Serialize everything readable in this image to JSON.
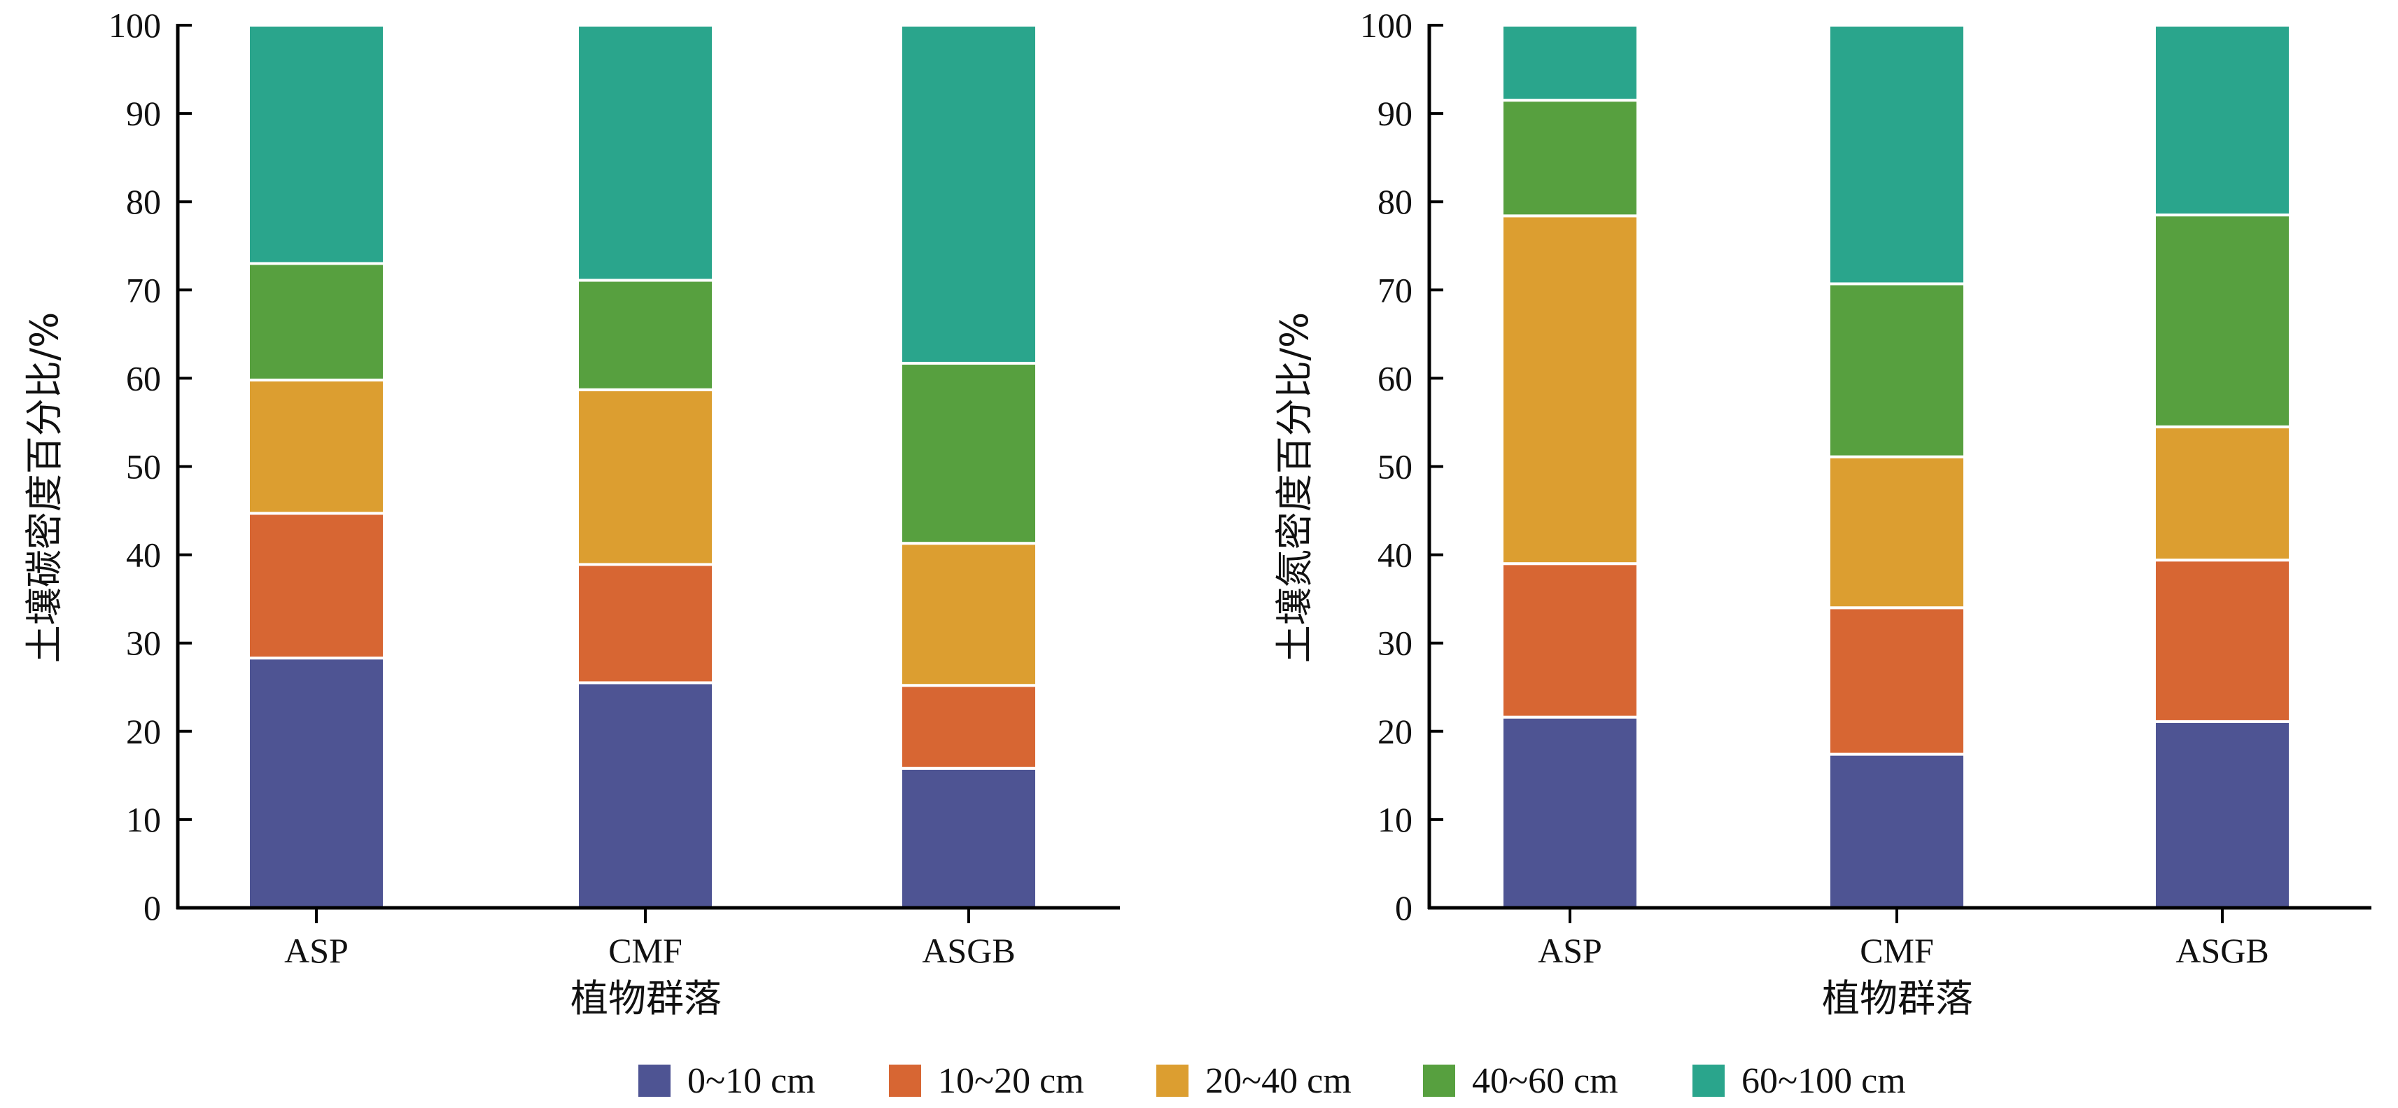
{
  "chart_data": [
    {
      "type": "bar",
      "stacked": true,
      "title": "",
      "xlabel": "植物群落",
      "ylabel": "土壤碳密度百分比/%",
      "ylim": [
        0,
        100
      ],
      "yticks": [
        "0",
        "10",
        "20",
        "30",
        "40",
        "50",
        "60",
        "70",
        "80",
        "90",
        "100"
      ],
      "categories": [
        "ASP",
        "CMF",
        "ASGB"
      ],
      "series": [
        {
          "name": "0~10 cm",
          "values": [
            28.3,
            25.5,
            15.8
          ]
        },
        {
          "name": "10~20 cm",
          "values": [
            16.4,
            13.4,
            9.4
          ]
        },
        {
          "name": "20~40 cm",
          "values": [
            15.1,
            19.8,
            16.1
          ]
        },
        {
          "name": "40~60 cm",
          "values": [
            13.2,
            12.4,
            20.4
          ]
        },
        {
          "name": "60~100 cm",
          "values": [
            27.0,
            28.9,
            38.3
          ]
        }
      ],
      "grid": false
    },
    {
      "type": "bar",
      "stacked": true,
      "title": "",
      "xlabel": "植物群落",
      "ylabel": "土壤氮密度百分比/%",
      "ylim": [
        0,
        100
      ],
      "yticks": [
        "0",
        "10",
        "20",
        "30",
        "40",
        "50",
        "60",
        "70",
        "80",
        "90",
        "100"
      ],
      "categories": [
        "ASP",
        "CMF",
        "ASGB"
      ],
      "series": [
        {
          "name": "0~10 cm",
          "values": [
            21.6,
            17.4,
            21.1
          ]
        },
        {
          "name": "10~20 cm",
          "values": [
            17.4,
            16.6,
            18.3
          ]
        },
        {
          "name": "20~40 cm",
          "values": [
            39.4,
            17.1,
            15.1
          ]
        },
        {
          "name": "40~60 cm",
          "values": [
            13.1,
            19.6,
            24.0
          ]
        },
        {
          "name": "60~100 cm",
          "values": [
            8.5,
            29.3,
            21.5
          ]
        }
      ],
      "grid": false
    }
  ],
  "legend": {
    "position": "bottom",
    "items": [
      "0~10 cm",
      "10~20 cm",
      "20~40 cm",
      "40~60 cm",
      "60~100 cm"
    ]
  },
  "colors": {
    "0~10 cm": "#4E5493",
    "10~20 cm": "#D76633",
    "20~40 cm": "#DC9E30",
    "40~60 cm": "#57A03F",
    "60~100 cm": "#2AA58C",
    "axis": "#000000",
    "segment_border": "#ffffff"
  }
}
